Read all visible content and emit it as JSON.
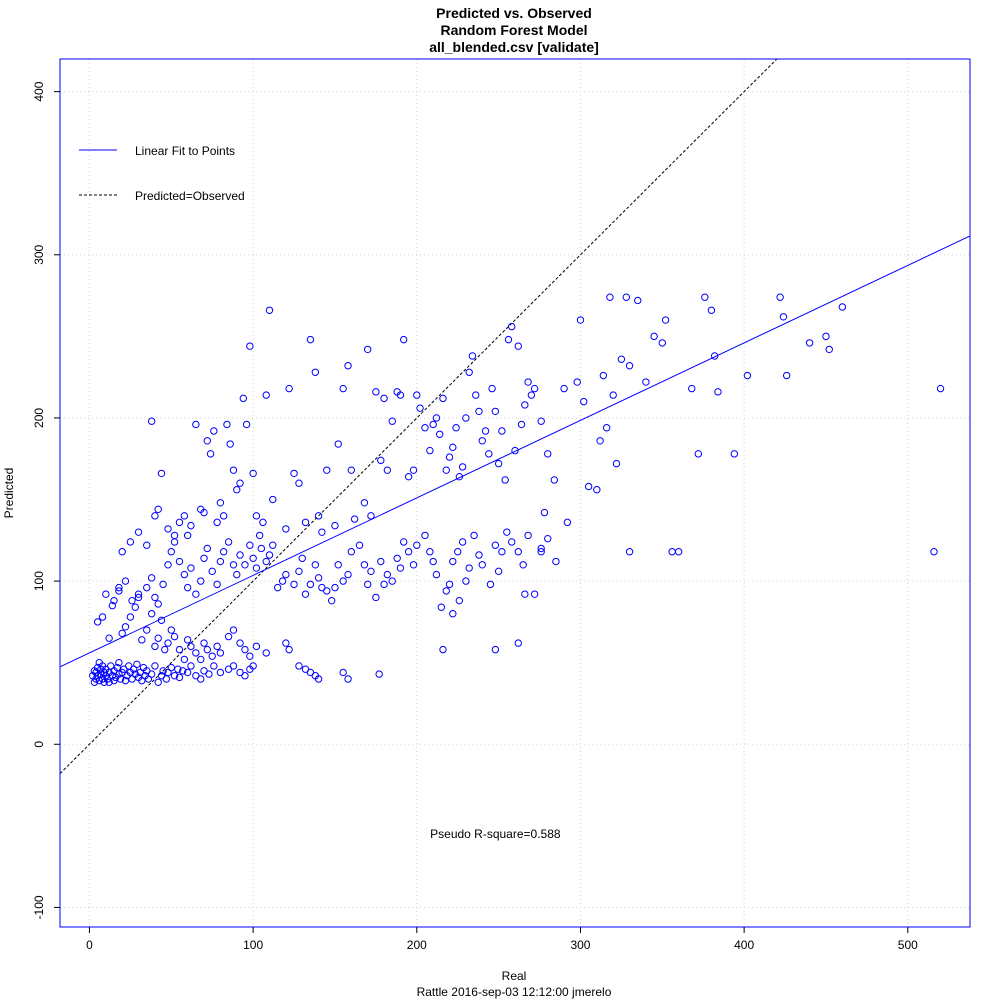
{
  "chart_data": {
    "type": "scatter",
    "title": [
      "Predicted vs. Observed",
      "Random Forest Model",
      "all_blended.csv [validate]"
    ],
    "xlabel": "Real",
    "ylabel": "Predicted",
    "footer": "Rattle 2016-sep-03 12:12:00 jmerelo",
    "xlim": [
      -18,
      538
    ],
    "ylim": [
      -112,
      420
    ],
    "x_ticks": [
      0,
      100,
      200,
      300,
      400,
      500
    ],
    "y_ticks": [
      -100,
      0,
      100,
      200,
      300,
      400
    ],
    "x_tick_labels": [
      "0",
      "100",
      "200",
      "300",
      "400",
      "500"
    ],
    "y_tick_labels": [
      "-100",
      "0",
      "100",
      "200",
      "300",
      "400"
    ],
    "grid": true,
    "legend_placement": "top-left",
    "legend": [
      {
        "label": "Linear Fit to Points",
        "style": "solid",
        "color": "#0000ff"
      },
      {
        "label": "Predicted=Observed",
        "style": "dashed",
        "color": "#000000"
      }
    ],
    "fit_line": {
      "intercept": 56,
      "slope": 0.475
    },
    "identity_line": {
      "intercept": 0,
      "slope": 1
    },
    "annotation": "Pseudo R-square=0.588",
    "annotation_at": [
      248,
      -55
    ],
    "marker_color": "#0000ff",
    "axis_color": "#0000ff",
    "points": [
      [
        2,
        42
      ],
      [
        3,
        38
      ],
      [
        3,
        45
      ],
      [
        4,
        40
      ],
      [
        4,
        44
      ],
      [
        5,
        42
      ],
      [
        5,
        47
      ],
      [
        6,
        39
      ],
      [
        6,
        50
      ],
      [
        7,
        43
      ],
      [
        7,
        46
      ],
      [
        8,
        40
      ],
      [
        8,
        48
      ],
      [
        9,
        44
      ],
      [
        9,
        38
      ],
      [
        10,
        42
      ],
      [
        10,
        46
      ],
      [
        11,
        40
      ],
      [
        12,
        44
      ],
      [
        12,
        38
      ],
      [
        13,
        48
      ],
      [
        14,
        42
      ],
      [
        15,
        45
      ],
      [
        15,
        39
      ],
      [
        16,
        41
      ],
      [
        17,
        47
      ],
      [
        18,
        43
      ],
      [
        18,
        50
      ],
      [
        19,
        40
      ],
      [
        20,
        44
      ],
      [
        21,
        46
      ],
      [
        22,
        39
      ],
      [
        23,
        42
      ],
      [
        24,
        48
      ],
      [
        25,
        44
      ],
      [
        26,
        40
      ],
      [
        27,
        46
      ],
      [
        28,
        43
      ],
      [
        29,
        49
      ],
      [
        30,
        41
      ],
      [
        31,
        44
      ],
      [
        32,
        39
      ],
      [
        33,
        47
      ],
      [
        34,
        42
      ],
      [
        35,
        45
      ],
      [
        36,
        40
      ],
      [
        38,
        43
      ],
      [
        40,
        48
      ],
      [
        42,
        38
      ],
      [
        44,
        42
      ],
      [
        45,
        45
      ],
      [
        47,
        40
      ],
      [
        48,
        44
      ],
      [
        50,
        47
      ],
      [
        52,
        42
      ],
      [
        54,
        46
      ],
      [
        55,
        41
      ],
      [
        57,
        45
      ],
      [
        60,
        44
      ],
      [
        62,
        48
      ],
      [
        65,
        42
      ],
      [
        68,
        40
      ],
      [
        70,
        45
      ],
      [
        73,
        43
      ],
      [
        76,
        48
      ],
      [
        80,
        44
      ],
      [
        85,
        46
      ],
      [
        88,
        48
      ],
      [
        92,
        44
      ],
      [
        95,
        42
      ],
      [
        98,
        46
      ],
      [
        100,
        48
      ],
      [
        128,
        48
      ],
      [
        132,
        46
      ],
      [
        135,
        44
      ],
      [
        138,
        42
      ],
      [
        140,
        40
      ],
      [
        155,
        44
      ],
      [
        158,
        40
      ],
      [
        177,
        43
      ],
      [
        5,
        75
      ],
      [
        8,
        78
      ],
      [
        12,
        65
      ],
      [
        15,
        88
      ],
      [
        18,
        94
      ],
      [
        20,
        68
      ],
      [
        22,
        72
      ],
      [
        25,
        78
      ],
      [
        28,
        84
      ],
      [
        30,
        90
      ],
      [
        32,
        64
      ],
      [
        35,
        70
      ],
      [
        38,
        80
      ],
      [
        40,
        60
      ],
      [
        42,
        65
      ],
      [
        44,
        76
      ],
      [
        46,
        58
      ],
      [
        48,
        62
      ],
      [
        50,
        70
      ],
      [
        52,
        66
      ],
      [
        55,
        58
      ],
      [
        58,
        52
      ],
      [
        60,
        64
      ],
      [
        62,
        60
      ],
      [
        65,
        56
      ],
      [
        68,
        52
      ],
      [
        70,
        62
      ],
      [
        72,
        58
      ],
      [
        75,
        54
      ],
      [
        78,
        60
      ],
      [
        80,
        56
      ],
      [
        85,
        66
      ],
      [
        88,
        70
      ],
      [
        92,
        62
      ],
      [
        95,
        58
      ],
      [
        98,
        54
      ],
      [
        102,
        60
      ],
      [
        108,
        56
      ],
      [
        120,
        62
      ],
      [
        122,
        58
      ],
      [
        10,
        92
      ],
      [
        14,
        85
      ],
      [
        18,
        96
      ],
      [
        22,
        100
      ],
      [
        26,
        88
      ],
      [
        30,
        92
      ],
      [
        35,
        96
      ],
      [
        38,
        102
      ],
      [
        40,
        90
      ],
      [
        42,
        86
      ],
      [
        45,
        98
      ],
      [
        48,
        110
      ],
      [
        50,
        118
      ],
      [
        52,
        124
      ],
      [
        55,
        112
      ],
      [
        58,
        104
      ],
      [
        60,
        96
      ],
      [
        62,
        108
      ],
      [
        65,
        92
      ],
      [
        68,
        100
      ],
      [
        70,
        114
      ],
      [
        72,
        120
      ],
      [
        75,
        106
      ],
      [
        78,
        98
      ],
      [
        80,
        112
      ],
      [
        82,
        118
      ],
      [
        85,
        124
      ],
      [
        88,
        110
      ],
      [
        90,
        104
      ],
      [
        92,
        116
      ],
      [
        95,
        110
      ],
      [
        98,
        122
      ],
      [
        100,
        114
      ],
      [
        102,
        108
      ],
      [
        105,
        120
      ],
      [
        108,
        112
      ],
      [
        110,
        116
      ],
      [
        112,
        122
      ],
      [
        115,
        96
      ],
      [
        118,
        100
      ],
      [
        120,
        104
      ],
      [
        125,
        98
      ],
      [
        128,
        106
      ],
      [
        130,
        114
      ],
      [
        132,
        92
      ],
      [
        135,
        98
      ],
      [
        138,
        110
      ],
      [
        140,
        102
      ],
      [
        142,
        96
      ],
      [
        145,
        94
      ],
      [
        148,
        88
      ],
      [
        150,
        96
      ],
      [
        152,
        110
      ],
      [
        155,
        100
      ],
      [
        158,
        104
      ],
      [
        160,
        118
      ],
      [
        165,
        122
      ],
      [
        168,
        110
      ],
      [
        170,
        98
      ],
      [
        172,
        106
      ],
      [
        175,
        90
      ],
      [
        178,
        112
      ],
      [
        180,
        98
      ],
      [
        182,
        104
      ],
      [
        185,
        100
      ],
      [
        188,
        114
      ],
      [
        190,
        108
      ],
      [
        192,
        124
      ],
      [
        195,
        118
      ],
      [
        198,
        110
      ],
      [
        200,
        122
      ],
      [
        205,
        128
      ],
      [
        208,
        118
      ],
      [
        210,
        112
      ],
      [
        212,
        104
      ],
      [
        215,
        84
      ],
      [
        218,
        94
      ],
      [
        220,
        98
      ],
      [
        222,
        112
      ],
      [
        225,
        118
      ],
      [
        228,
        124
      ],
      [
        230,
        100
      ],
      [
        232,
        108
      ],
      [
        235,
        128
      ],
      [
        238,
        116
      ],
      [
        240,
        110
      ],
      [
        245,
        98
      ],
      [
        248,
        122
      ],
      [
        250,
        106
      ],
      [
        252,
        118
      ],
      [
        255,
        130
      ],
      [
        258,
        124
      ],
      [
        262,
        118
      ],
      [
        265,
        110
      ],
      [
        268,
        128
      ],
      [
        272,
        92
      ],
      [
        276,
        118
      ],
      [
        280,
        126
      ],
      [
        285,
        112
      ],
      [
        20,
        118
      ],
      [
        25,
        124
      ],
      [
        30,
        130
      ],
      [
        35,
        122
      ],
      [
        38,
        198
      ],
      [
        40,
        140
      ],
      [
        42,
        144
      ],
      [
        44,
        166
      ],
      [
        48,
        132
      ],
      [
        52,
        128
      ],
      [
        55,
        136
      ],
      [
        58,
        140
      ],
      [
        60,
        128
      ],
      [
        62,
        134
      ],
      [
        65,
        196
      ],
      [
        68,
        144
      ],
      [
        70,
        142
      ],
      [
        72,
        186
      ],
      [
        74,
        178
      ],
      [
        76,
        192
      ],
      [
        78,
        136
      ],
      [
        80,
        148
      ],
      [
        82,
        140
      ],
      [
        84,
        196
      ],
      [
        86,
        184
      ],
      [
        88,
        168
      ],
      [
        90,
        156
      ],
      [
        92,
        160
      ],
      [
        94,
        212
      ],
      [
        96,
        196
      ],
      [
        98,
        244
      ],
      [
        100,
        166
      ],
      [
        102,
        140
      ],
      [
        104,
        128
      ],
      [
        106,
        136
      ],
      [
        108,
        214
      ],
      [
        110,
        266
      ],
      [
        112,
        150
      ],
      [
        120,
        132
      ],
      [
        122,
        218
      ],
      [
        125,
        166
      ],
      [
        128,
        160
      ],
      [
        132,
        136
      ],
      [
        135,
        248
      ],
      [
        138,
        228
      ],
      [
        140,
        140
      ],
      [
        142,
        130
      ],
      [
        145,
        168
      ],
      [
        150,
        134
      ],
      [
        152,
        184
      ],
      [
        155,
        218
      ],
      [
        158,
        232
      ],
      [
        160,
        168
      ],
      [
        162,
        138
      ],
      [
        168,
        148
      ],
      [
        170,
        242
      ],
      [
        172,
        140
      ],
      [
        175,
        216
      ],
      [
        178,
        174
      ],
      [
        180,
        212
      ],
      [
        182,
        168
      ],
      [
        185,
        198
      ],
      [
        188,
        216
      ],
      [
        190,
        214
      ],
      [
        192,
        248
      ],
      [
        195,
        164
      ],
      [
        198,
        168
      ],
      [
        200,
        214
      ],
      [
        202,
        206
      ],
      [
        205,
        194
      ],
      [
        208,
        180
      ],
      [
        210,
        196
      ],
      [
        212,
        200
      ],
      [
        214,
        190
      ],
      [
        216,
        212
      ],
      [
        218,
        168
      ],
      [
        220,
        176
      ],
      [
        222,
        182
      ],
      [
        224,
        194
      ],
      [
        226,
        164
      ],
      [
        228,
        170
      ],
      [
        230,
        200
      ],
      [
        232,
        228
      ],
      [
        234,
        238
      ],
      [
        236,
        214
      ],
      [
        238,
        204
      ],
      [
        240,
        186
      ],
      [
        242,
        192
      ],
      [
        244,
        178
      ],
      [
        246,
        218
      ],
      [
        248,
        204
      ],
      [
        250,
        172
      ],
      [
        252,
        192
      ],
      [
        254,
        162
      ],
      [
        256,
        248
      ],
      [
        258,
        256
      ],
      [
        260,
        180
      ],
      [
        262,
        244
      ],
      [
        264,
        196
      ],
      [
        266,
        208
      ],
      [
        268,
        222
      ],
      [
        270,
        214
      ],
      [
        272,
        218
      ],
      [
        276,
        198
      ],
      [
        278,
        142
      ],
      [
        280,
        178
      ],
      [
        284,
        162
      ],
      [
        290,
        218
      ],
      [
        292,
        136
      ],
      [
        298,
        222
      ],
      [
        300,
        260
      ],
      [
        302,
        210
      ],
      [
        305,
        158
      ],
      [
        310,
        156
      ],
      [
        312,
        186
      ],
      [
        314,
        226
      ],
      [
        316,
        194
      ],
      [
        318,
        274
      ],
      [
        320,
        214
      ],
      [
        322,
        172
      ],
      [
        325,
        236
      ],
      [
        328,
        274
      ],
      [
        330,
        232
      ],
      [
        335,
        272
      ],
      [
        340,
        222
      ],
      [
        345,
        250
      ],
      [
        350,
        246
      ],
      [
        352,
        260
      ],
      [
        356,
        118
      ],
      [
        360,
        118
      ],
      [
        368,
        218
      ],
      [
        372,
        178
      ],
      [
        376,
        274
      ],
      [
        380,
        266
      ],
      [
        382,
        238
      ],
      [
        384,
        216
      ],
      [
        394,
        178
      ],
      [
        402,
        226
      ],
      [
        422,
        274
      ],
      [
        424,
        262
      ],
      [
        426,
        226
      ],
      [
        440,
        246
      ],
      [
        450,
        250
      ],
      [
        452,
        242
      ],
      [
        460,
        268
      ],
      [
        516,
        118
      ],
      [
        520,
        218
      ],
      [
        330,
        118
      ],
      [
        276,
        120
      ],
      [
        266,
        92
      ],
      [
        262,
        62
      ],
      [
        248,
        58
      ],
      [
        216,
        58
      ],
      [
        222,
        80
      ],
      [
        226,
        88
      ]
    ]
  }
}
